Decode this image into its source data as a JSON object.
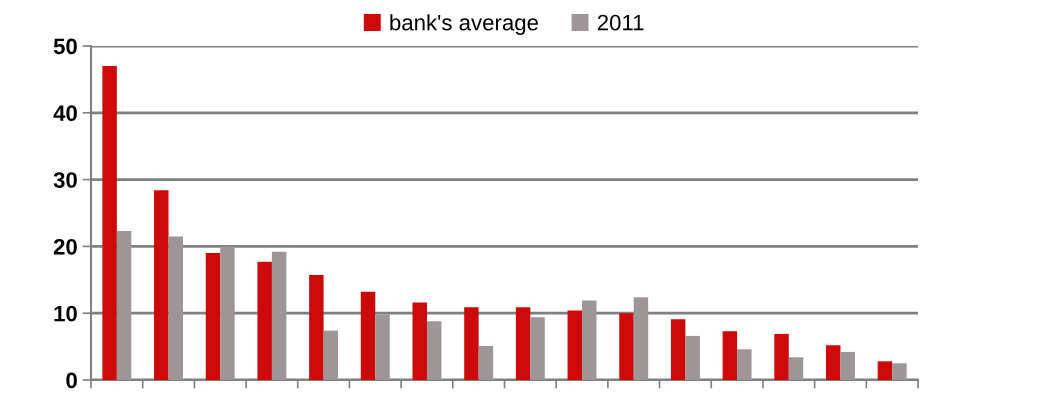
{
  "chart_data": {
    "type": "bar",
    "categories": [
      null,
      null,
      null,
      null,
      null,
      null,
      null,
      null,
      null,
      null,
      null,
      null,
      null,
      null,
      null,
      null
    ],
    "series": [
      {
        "name": "bank's average",
        "color": "#cc0a0a",
        "values": [
          47,
          28.4,
          19,
          17.7,
          15.7,
          13.2,
          11.6,
          10.9,
          10.9,
          10.4,
          10,
          9.1,
          7.3,
          6.9,
          5.2,
          2.8
        ]
      },
      {
        "name": "2011",
        "color": "#9e9696",
        "values": [
          22.3,
          21.5,
          20,
          19.2,
          7.4,
          9.8,
          8.8,
          5.1,
          9.4,
          11.9,
          12.4,
          6.6,
          4.6,
          3.4,
          4.2,
          2.5
        ]
      }
    ],
    "ylim": [
      0,
      50
    ],
    "yticks": [
      0,
      10,
      20,
      30,
      40,
      50
    ],
    "grid": "y",
    "legend": "top"
  }
}
